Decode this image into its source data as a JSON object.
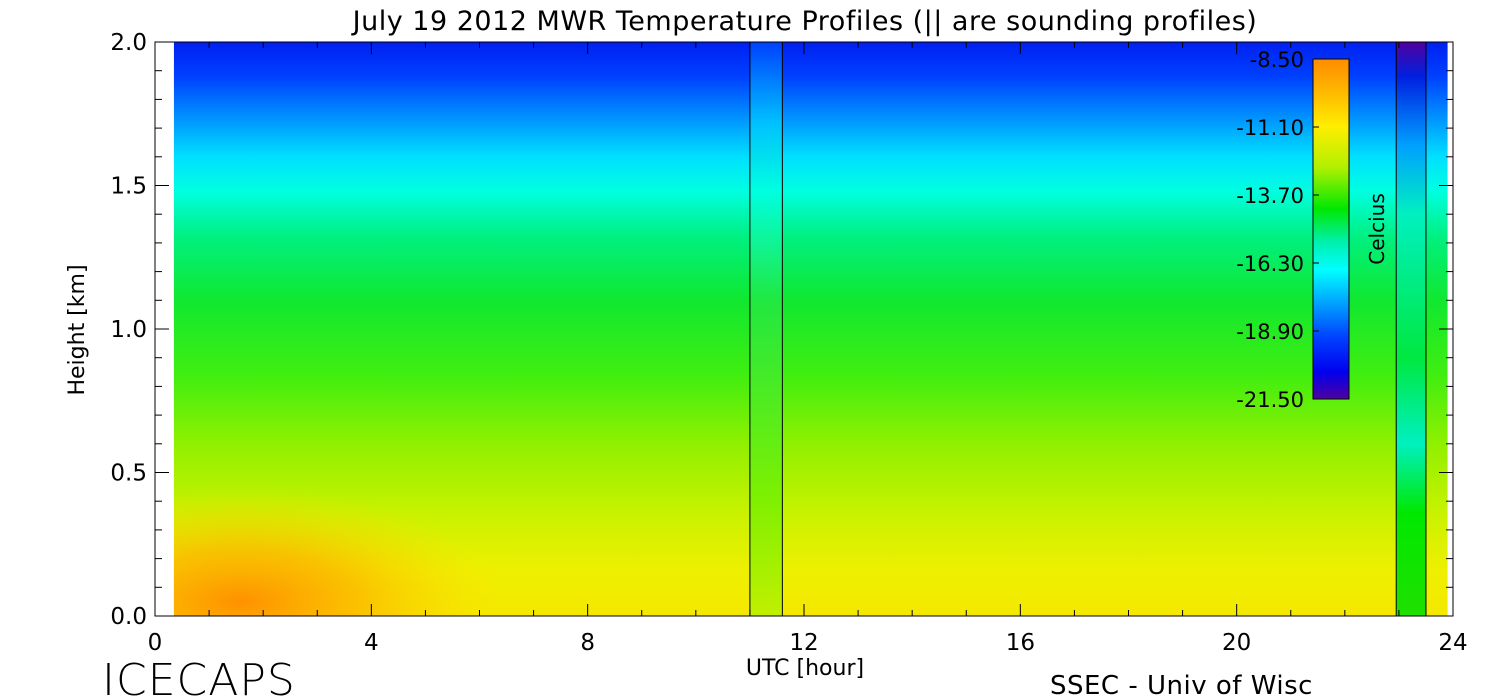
{
  "chart_data": {
    "type": "heatmap",
    "title": "July 19 2012 MWR Temperature Profiles (|| are sounding profiles)",
    "xlabel": "UTC [hour]",
    "ylabel": "Height [km]",
    "xlim": [
      0,
      24
    ],
    "ylim": [
      0,
      2
    ],
    "x_ticks": [
      0,
      4,
      8,
      12,
      16,
      20,
      24
    ],
    "x_tick_labels": [
      "0",
      "4",
      "8",
      "12",
      "16",
      "20",
      "24"
    ],
    "y_ticks": [
      0,
      0.5,
      1,
      1.5,
      2
    ],
    "y_tick_labels": [
      "0.0",
      "0.5",
      "1.0",
      "1.5",
      "2.0"
    ],
    "data_x_range": [
      0.35,
      23.9
    ],
    "sounding_profiles_utc": [
      {
        "start": 11.0,
        "end": 11.6
      },
      {
        "start": 22.95,
        "end": 23.5
      }
    ],
    "colorbar": {
      "label": "Celcius",
      "min": -21.5,
      "max": -8.5,
      "tick_values": [
        -8.5,
        -11.1,
        -13.7,
        -16.3,
        -18.9,
        -21.5
      ],
      "tick_labels": [
        "-8.50",
        "-11.10",
        "-13.70",
        "-16.30",
        "-18.90",
        "-21.50"
      ],
      "colors_top_to_bottom": [
        "#ff8c00",
        "#ffb000",
        "#ffee00",
        "#b0f000",
        "#00e800",
        "#00f0b0",
        "#00ffff",
        "#00a0ff",
        "#0040ff",
        "#0000ee",
        "#5000a0"
      ]
    },
    "temperature_profile_by_height_km": [
      {
        "height": 0.0,
        "temp": -10.4
      },
      {
        "height": 0.25,
        "temp": -11.2
      },
      {
        "height": 0.5,
        "temp": -12.3
      },
      {
        "height": 0.8,
        "temp": -13.5
      },
      {
        "height": 1.0,
        "temp": -13.9
      },
      {
        "height": 1.2,
        "temp": -14.6
      },
      {
        "height": 1.4,
        "temp": -15.8
      },
      {
        "height": 1.55,
        "temp": -17.0
      },
      {
        "height": 1.7,
        "temp": -18.5
      },
      {
        "height": 1.85,
        "temp": -19.6
      },
      {
        "height": 2.0,
        "temp": -20.4
      }
    ]
  },
  "footer": {
    "left": "ICECAPS",
    "right": "SSEC - Univ of Wisc"
  }
}
